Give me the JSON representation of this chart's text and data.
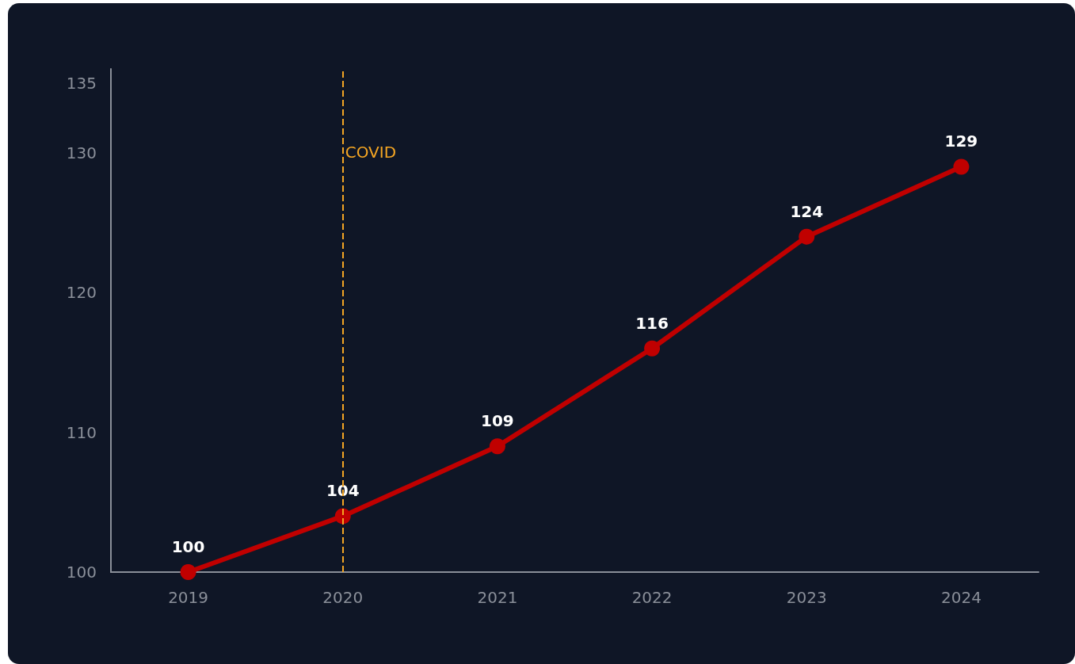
{
  "chart_data": {
    "type": "line",
    "categories": [
      "2019",
      "2020",
      "2021",
      "2022",
      "2023",
      "2024"
    ],
    "series": [
      {
        "color": "#c00000",
        "values": [
          100,
          104,
          109,
          116,
          124,
          129
        ]
      }
    ],
    "ylim": [
      100,
      136
    ],
    "yticks": [
      100,
      110,
      120,
      130,
      135
    ],
    "ref_lines": [
      {
        "axis": "x",
        "value": "2020",
        "label": "COVID",
        "color": "#f5a623",
        "line_style": "dashed"
      }
    ],
    "data_labels": true,
    "grid": false,
    "marker": "circle",
    "line_style": "solid"
  }
}
